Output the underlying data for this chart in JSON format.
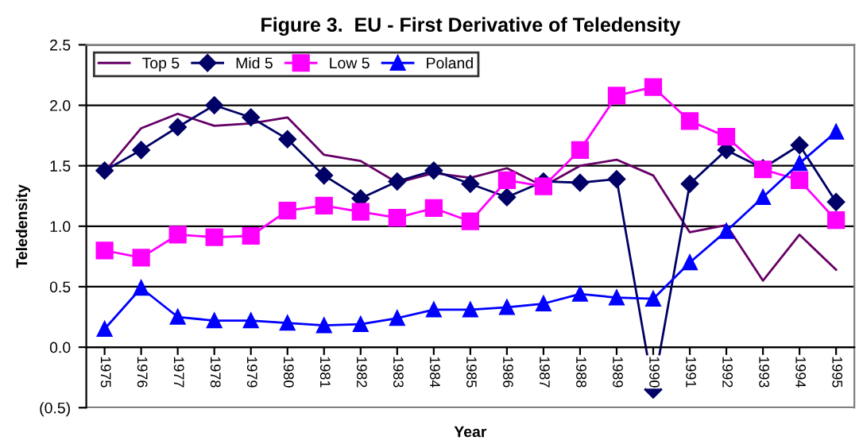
{
  "chart_data": {
    "type": "line",
    "title": "Figure 3.  EU - First Derivative of Teledensity",
    "xlabel": "Year",
    "ylabel": "Teledensity",
    "categories": [
      "1975",
      "1976",
      "1977",
      "1978",
      "1979",
      "1980",
      "1981",
      "1982",
      "1983",
      "1984",
      "1985",
      "1986",
      "1987",
      "1988",
      "1989",
      "1990",
      "1991",
      "1992",
      "1993",
      "1994",
      "1995"
    ],
    "series": [
      {
        "name": "Top 5",
        "color": "#660066",
        "marker": "none",
        "values": [
          1.45,
          1.81,
          1.93,
          1.83,
          1.85,
          1.9,
          1.59,
          1.54,
          1.36,
          1.44,
          1.4,
          1.48,
          1.33,
          1.5,
          1.55,
          1.42,
          0.95,
          1.01,
          0.55,
          0.93,
          0.64
        ]
      },
      {
        "name": "Mid 5",
        "color": "#000066",
        "marker": "diamond",
        "values": [
          1.46,
          1.63,
          1.82,
          2.0,
          1.9,
          1.72,
          1.42,
          1.23,
          1.37,
          1.46,
          1.35,
          1.24,
          1.37,
          1.36,
          1.39,
          -0.35,
          1.35,
          1.63,
          1.48,
          1.67,
          1.2
        ]
      },
      {
        "name": "Low 5",
        "color": "#ff00ff",
        "marker": "square",
        "values": [
          0.8,
          0.74,
          0.93,
          0.91,
          0.92,
          1.13,
          1.17,
          1.12,
          1.07,
          1.15,
          1.04,
          1.38,
          1.33,
          1.63,
          2.08,
          2.15,
          1.87,
          1.74,
          1.47,
          1.38,
          1.05
        ]
      },
      {
        "name": "Poland",
        "color": "#0000ff",
        "marker": "triangle",
        "values": [
          0.15,
          0.49,
          0.25,
          0.22,
          0.22,
          0.2,
          0.18,
          0.19,
          0.24,
          0.31,
          0.31,
          0.33,
          0.36,
          0.44,
          0.41,
          0.4,
          0.7,
          0.96,
          1.24,
          1.52,
          1.78
        ]
      }
    ],
    "ylim": [
      -0.5,
      2.5
    ],
    "yticks": [
      {
        "value": -0.5,
        "label": "(0.5)"
      },
      {
        "value": 0,
        "label": "0.0"
      },
      {
        "value": 0.5,
        "label": "0.5"
      },
      {
        "value": 1,
        "label": "1.0"
      },
      {
        "value": 1.5,
        "label": "1.5"
      },
      {
        "value": 2,
        "label": "2.0"
      },
      {
        "value": 2.5,
        "label": "2.5"
      }
    ],
    "grid": "y",
    "legend": "top left",
    "line_style": "solid"
  }
}
